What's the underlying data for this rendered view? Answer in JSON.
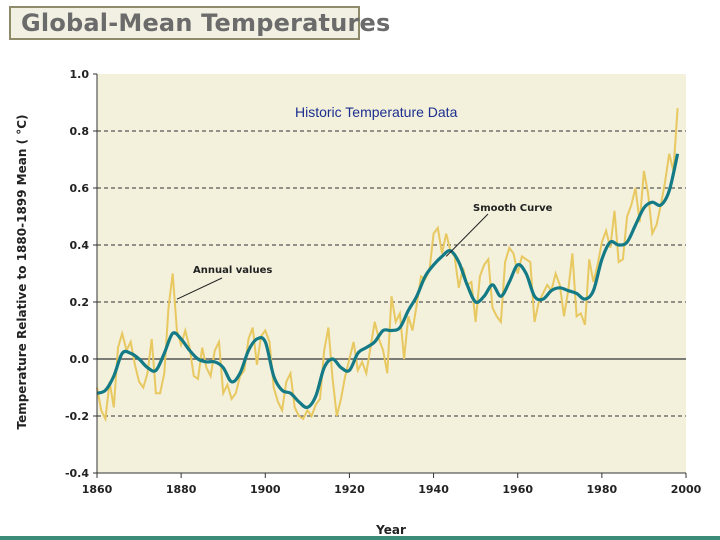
{
  "slide": {
    "banner_title": "Global-Mean Temperatures",
    "overlay_title": "Historic Temperature Data"
  },
  "colors": {
    "plot_background": "#f3f0dc",
    "annual_line": "#e8c860",
    "smooth_line": "#137a86",
    "grid_dashed": "#333333",
    "zero_line": "#555555"
  },
  "chart_data": {
    "type": "line",
    "title": "Global-Mean Temperatures",
    "xlabel": "Year",
    "ylabel": "Temperature Relative to 1880-1899 Mean ( °C)",
    "xlim": [
      1860,
      2000
    ],
    "ylim": [
      -0.4,
      1.0
    ],
    "x_ticks": [
      1860,
      1880,
      1900,
      1920,
      1940,
      1960,
      1980,
      2000
    ],
    "y_ticks": [
      -0.4,
      -0.2,
      0.0,
      0.2,
      0.4,
      0.6,
      0.8,
      1.0
    ],
    "y_tick_labels": [
      "-0.4",
      "-0.2",
      "0.0",
      "0.2",
      "0.4",
      "0.6",
      "0.8",
      "1.0"
    ],
    "grid": "dashed horizontal lines at -0.2, 0.2, 0.4, 0.6, 0.8; solid line at 0.0",
    "series": [
      {
        "name": "Annual values",
        "color": "#e8c860",
        "x": [
          1860,
          1861,
          1862,
          1863,
          1864,
          1865,
          1866,
          1867,
          1868,
          1869,
          1870,
          1871,
          1872,
          1873,
          1874,
          1875,
          1876,
          1877,
          1878,
          1879,
          1880,
          1881,
          1882,
          1883,
          1884,
          1885,
          1886,
          1887,
          1888,
          1889,
          1890,
          1891,
          1892,
          1893,
          1894,
          1895,
          1896,
          1897,
          1898,
          1899,
          1900,
          1901,
          1902,
          1903,
          1904,
          1905,
          1906,
          1907,
          1908,
          1909,
          1910,
          1911,
          1912,
          1913,
          1914,
          1915,
          1916,
          1917,
          1918,
          1919,
          1920,
          1921,
          1922,
          1923,
          1924,
          1925,
          1926,
          1927,
          1928,
          1929,
          1930,
          1931,
          1932,
          1933,
          1934,
          1935,
          1936,
          1937,
          1938,
          1939,
          1940,
          1941,
          1942,
          1943,
          1944,
          1945,
          1946,
          1947,
          1948,
          1949,
          1950,
          1951,
          1952,
          1953,
          1954,
          1955,
          1956,
          1957,
          1958,
          1959,
          1960,
          1961,
          1962,
          1963,
          1964,
          1965,
          1966,
          1967,
          1968,
          1969,
          1970,
          1971,
          1972,
          1973,
          1974,
          1975,
          1976,
          1977,
          1978,
          1979,
          1980,
          1981,
          1982,
          1983,
          1984,
          1985,
          1986,
          1987,
          1988,
          1989,
          1990,
          1991,
          1992,
          1993,
          1994,
          1995,
          1996,
          1997,
          1998
        ],
        "values": [
          -0.1,
          -0.18,
          -0.21,
          -0.08,
          -0.17,
          0.04,
          0.09,
          0.03,
          0.06,
          -0.02,
          -0.08,
          -0.1,
          -0.05,
          0.07,
          -0.12,
          -0.12,
          -0.05,
          0.18,
          0.3,
          0.1,
          0.05,
          0.1,
          0.04,
          -0.06,
          -0.07,
          0.04,
          -0.03,
          -0.06,
          0.03,
          0.06,
          -0.12,
          -0.09,
          -0.14,
          -0.12,
          -0.06,
          -0.04,
          0.07,
          0.11,
          -0.02,
          0.08,
          0.1,
          0.06,
          -0.1,
          -0.15,
          -0.18,
          -0.08,
          -0.05,
          -0.17,
          -0.2,
          -0.21,
          -0.18,
          -0.2,
          -0.16,
          -0.14,
          0.03,
          0.11,
          -0.07,
          -0.2,
          -0.14,
          -0.06,
          0.0,
          0.06,
          -0.04,
          -0.01,
          -0.05,
          0.04,
          0.13,
          0.07,
          0.03,
          -0.05,
          0.22,
          0.13,
          0.16,
          0.0,
          0.15,
          0.1,
          0.19,
          0.29,
          0.28,
          0.31,
          0.44,
          0.46,
          0.37,
          0.44,
          0.38,
          0.36,
          0.25,
          0.32,
          0.26,
          0.27,
          0.13,
          0.29,
          0.33,
          0.35,
          0.18,
          0.15,
          0.13,
          0.34,
          0.39,
          0.37,
          0.3,
          0.36,
          0.35,
          0.34,
          0.13,
          0.2,
          0.23,
          0.26,
          0.24,
          0.3,
          0.26,
          0.15,
          0.24,
          0.37,
          0.15,
          0.16,
          0.12,
          0.35,
          0.27,
          0.33,
          0.41,
          0.45,
          0.39,
          0.52,
          0.34,
          0.35,
          0.5,
          0.54,
          0.6,
          0.48,
          0.66,
          0.58,
          0.44,
          0.47,
          0.54,
          0.62,
          0.72,
          0.66,
          0.88
        ]
      },
      {
        "name": "Smooth Curve",
        "color": "#137a86",
        "x": [
          1860,
          1862,
          1864,
          1866,
          1868,
          1870,
          1872,
          1874,
          1876,
          1878,
          1880,
          1882,
          1884,
          1886,
          1888,
          1890,
          1892,
          1894,
          1896,
          1898,
          1900,
          1902,
          1904,
          1906,
          1908,
          1910,
          1912,
          1914,
          1916,
          1918,
          1920,
          1922,
          1924,
          1926,
          1928,
          1930,
          1932,
          1934,
          1936,
          1938,
          1940,
          1942,
          1944,
          1946,
          1948,
          1950,
          1952,
          1954,
          1956,
          1958,
          1960,
          1962,
          1964,
          1966,
          1968,
          1970,
          1972,
          1974,
          1976,
          1978,
          1980,
          1982,
          1984,
          1986,
          1988,
          1990,
          1992,
          1994,
          1996,
          1998
        ],
        "values": [
          -0.12,
          -0.11,
          -0.06,
          0.02,
          0.02,
          0.0,
          -0.03,
          -0.04,
          0.02,
          0.09,
          0.07,
          0.03,
          0.0,
          -0.01,
          -0.01,
          -0.03,
          -0.08,
          -0.05,
          0.03,
          0.07,
          0.06,
          -0.06,
          -0.11,
          -0.12,
          -0.15,
          -0.17,
          -0.13,
          -0.03,
          0.0,
          -0.03,
          -0.04,
          0.02,
          0.04,
          0.06,
          0.1,
          0.1,
          0.11,
          0.17,
          0.22,
          0.29,
          0.33,
          0.36,
          0.38,
          0.34,
          0.26,
          0.2,
          0.22,
          0.26,
          0.22,
          0.27,
          0.33,
          0.3,
          0.22,
          0.21,
          0.24,
          0.25,
          0.24,
          0.23,
          0.21,
          0.24,
          0.35,
          0.41,
          0.4,
          0.41,
          0.47,
          0.53,
          0.55,
          0.54,
          0.59,
          0.72
        ]
      }
    ],
    "annotations": [
      {
        "text": "Annual values",
        "points_to_year": 1879,
        "points_to_value": 0.21
      },
      {
        "text": "Smooth Curve",
        "points_to_year": 1943,
        "points_to_value": 0.36
      }
    ]
  }
}
